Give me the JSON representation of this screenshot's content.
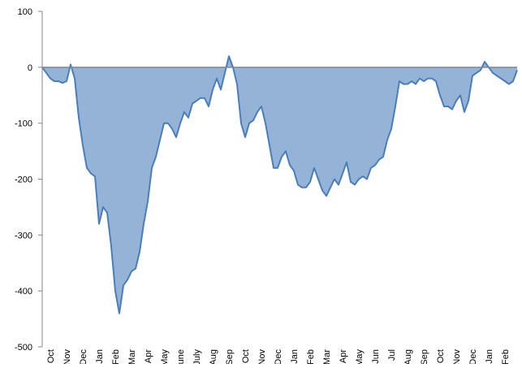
{
  "chart_data": {
    "type": "area",
    "categories": [
      null,
      null,
      "Oct",
      null,
      null,
      null,
      "Nov",
      null,
      null,
      null,
      "Dec",
      null,
      null,
      null,
      "Jan",
      null,
      null,
      null,
      "Feb",
      null,
      null,
      null,
      "Mar",
      null,
      null,
      null,
      "Apr",
      null,
      null,
      null,
      "May",
      null,
      null,
      null,
      "June",
      null,
      null,
      null,
      "July",
      null,
      null,
      null,
      "Aug",
      null,
      null,
      null,
      "Sep",
      null,
      null,
      null,
      "Oct",
      null,
      null,
      null,
      "Nov",
      null,
      null,
      null,
      "Dec",
      null,
      null,
      null,
      "Jan",
      null,
      null,
      null,
      "Feb",
      null,
      null,
      null,
      "Mar",
      null,
      null,
      null,
      "Apr",
      null,
      null,
      null,
      "May",
      null,
      null,
      null,
      "Jun",
      null,
      null,
      null,
      "Jul",
      null,
      null,
      null,
      "Aug",
      null,
      null,
      null,
      "Sep",
      null,
      null,
      null,
      "Oct",
      null,
      null,
      null,
      "Nov",
      null,
      null,
      null,
      "Dec",
      null,
      null,
      null,
      "Jan",
      null,
      null,
      null,
      "Feb",
      null,
      null,
      null
    ],
    "values": [
      0,
      -10,
      -20,
      -25,
      -25,
      -28,
      -25,
      5,
      -20,
      -90,
      -140,
      -180,
      -190,
      -195,
      -280,
      -250,
      -260,
      -320,
      -400,
      -440,
      -390,
      -380,
      -365,
      -360,
      -330,
      -280,
      -240,
      -180,
      -160,
      -130,
      -100,
      -100,
      -110,
      -125,
      -100,
      -80,
      -90,
      -65,
      -60,
      -55,
      -55,
      -70,
      -40,
      -20,
      -40,
      -10,
      20,
      0,
      -30,
      -100,
      -125,
      -100,
      -95,
      -80,
      -70,
      -100,
      -140,
      -180,
      -180,
      -160,
      -150,
      -175,
      -185,
      -210,
      -215,
      -215,
      -205,
      -180,
      -200,
      -220,
      -230,
      -215,
      -200,
      -210,
      -190,
      -170,
      -205,
      -210,
      -200,
      -195,
      -200,
      -180,
      -175,
      -165,
      -160,
      -130,
      -110,
      -70,
      -25,
      -30,
      -30,
      -25,
      -30,
      -20,
      -25,
      -20,
      -20,
      -25,
      -50,
      -70,
      -70,
      -75,
      -60,
      -50,
      -80,
      -60,
      -15,
      -10,
      -5,
      10,
      0,
      -10,
      -15,
      -20,
      -25,
      -30,
      -25,
      -5
    ],
    "color": "#95b3d7",
    "line_color": "#4a7ebb",
    "ylim": [
      -500,
      100
    ],
    "yticks": [
      -500,
      -400,
      -300,
      -200,
      -100,
      0,
      100
    ]
  }
}
